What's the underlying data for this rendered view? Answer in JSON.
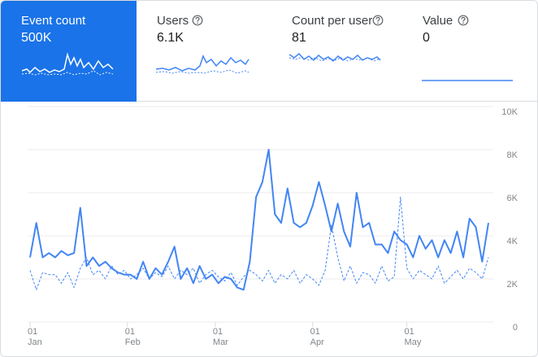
{
  "tabs": [
    {
      "label": "Event count",
      "value": "500K"
    },
    {
      "label": "Users",
      "value": "6.1K"
    },
    {
      "label": "Count per user",
      "value": "81"
    },
    {
      "label": "Value",
      "value": "0"
    }
  ],
  "chart_data": {
    "type": "line",
    "x": [
      0,
      2,
      4,
      6,
      8,
      10,
      12,
      14,
      16,
      18,
      20,
      22,
      24,
      26,
      28,
      30,
      32,
      34,
      36,
      38,
      40,
      42,
      44,
      46,
      48,
      50,
      52,
      54,
      56,
      58,
      60,
      62,
      64,
      66,
      68,
      70,
      72,
      74,
      76,
      78,
      80,
      82,
      84,
      86,
      88,
      90,
      92,
      94,
      96,
      98,
      100,
      102,
      104,
      106,
      108,
      110,
      112,
      114,
      116,
      118,
      120,
      122,
      124,
      126,
      128,
      130,
      132,
      134,
      136,
      138,
      140,
      142,
      144,
      146
    ],
    "xlim": [
      0,
      146
    ],
    "xticks": [
      {
        "value": 0,
        "label": "01\nJan"
      },
      {
        "value": 31,
        "label": "01\nFeb"
      },
      {
        "value": 59,
        "label": "01\nMar"
      },
      {
        "value": 90,
        "label": "01\nApr"
      },
      {
        "value": 120,
        "label": "01\nMay"
      }
    ],
    "ylim": [
      0,
      10000
    ],
    "yticks": [
      0,
      {
        "value": 2000,
        "label": "2K"
      },
      {
        "value": 4000,
        "label": "4K"
      },
      {
        "value": 6000,
        "label": "6K"
      },
      {
        "value": 8000,
        "label": "8K"
      },
      {
        "value": 10000,
        "label": "10K"
      }
    ],
    "grid": true,
    "series": [
      {
        "color": "#4285f4",
        "style": "solid",
        "values": [
          3000,
          4600,
          3000,
          3200,
          3000,
          3300,
          3100,
          3200,
          5300,
          2600,
          3000,
          2600,
          2800,
          2500,
          2300,
          2200,
          2200,
          2000,
          2800,
          2000,
          2500,
          2200,
          2800,
          3500,
          2000,
          2500,
          1800,
          2600,
          2000,
          2200,
          1800,
          2100,
          2000,
          1600,
          1500,
          2800,
          5800,
          6500,
          8000,
          5000,
          4600,
          6200,
          4600,
          4400,
          4600,
          5400,
          6500,
          5400,
          4200,
          5500,
          4200,
          3500,
          6000,
          4400,
          4600,
          3600,
          3600,
          3200,
          4200,
          3800,
          3600,
          3000,
          4000,
          3400,
          3800,
          3000,
          3800,
          3200,
          4200,
          3000,
          4800,
          4400,
          2800,
          4600
        ]
      },
      {
        "color": "#4285f4",
        "style": "dashed",
        "values": [
          2400,
          1500,
          2300,
          2200,
          2200,
          1800,
          2300,
          1600,
          2500,
          3000,
          2200,
          2400,
          2000,
          2600,
          2200,
          2400,
          2000,
          2200,
          2500,
          2000,
          2300,
          2100,
          2600,
          2000,
          2400,
          2200,
          2500,
          1800,
          2200,
          2400,
          2100,
          1900,
          2300,
          1700,
          2100,
          2400,
          2200,
          1900,
          2400,
          1800,
          2200,
          2000,
          2400,
          1800,
          2200,
          2000,
          1700,
          2400,
          4500,
          3000,
          1900,
          2600,
          1800,
          2300,
          2200,
          1800,
          2600,
          1900,
          2100,
          5800,
          2500,
          2000,
          2400,
          2200,
          2000,
          2600,
          1800,
          2100,
          2400,
          2000,
          2500,
          2300,
          2000,
          3000
        ]
      }
    ]
  }
}
